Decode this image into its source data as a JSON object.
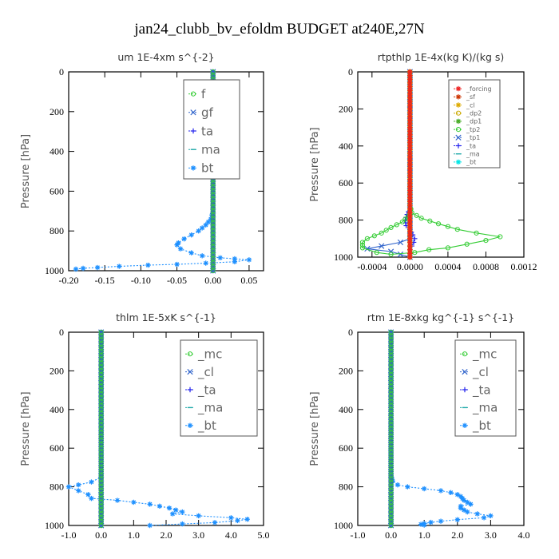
{
  "suptitle": "jan24_clubb_bv_efoldm  BUDGET at240E,27N",
  "chart_data": [
    {
      "type": "line",
      "title": "um   1E-4xm s^{-2}",
      "ylabel": "Pressure [hPa]",
      "xlim": [
        -0.2,
        0.07
      ],
      "ylim": [
        1000,
        0
      ],
      "xticks": [
        -0.2,
        -0.15,
        -0.1,
        -0.05,
        0.0,
        0.05
      ],
      "xtick_labels": [
        "-0.20",
        "-0.15",
        "-0.10",
        "-0.05",
        "0.00",
        "0.05"
      ],
      "yticks": [
        0,
        200,
        400,
        600,
        800,
        1000
      ],
      "ytick_labels": [
        "0",
        "200",
        "400",
        "600",
        "800",
        "1000"
      ],
      "legend_placement": "top-right",
      "legend_font": 15,
      "series": [
        {
          "name": "f",
          "color": "#33cc33",
          "marker": "o",
          "values": [
            [
              0.0,
              0
            ],
            [
              0.0,
              200
            ],
            [
              0.0,
              400
            ],
            [
              0.0,
              600
            ],
            [
              0.0,
              800
            ],
            [
              0.0,
              1000
            ]
          ]
        },
        {
          "name": "gf",
          "color": "#3366cc",
          "marker": "x",
          "values": [
            [
              0.0,
              0
            ],
            [
              0.0,
              1000
            ]
          ]
        },
        {
          "name": "ta",
          "color": "#2222ee",
          "marker": "+",
          "values": [
            [
              0.0,
              0
            ],
            [
              0.0,
              1000
            ]
          ]
        },
        {
          "name": "ma",
          "color": "#22aaaa",
          "marker": "-",
          "values": [
            [
              0.0,
              0
            ],
            [
              0.0,
              1000
            ]
          ]
        },
        {
          "name": "bt",
          "color": "#1e90ff",
          "marker": "*",
          "values": [
            [
              0.0,
              0
            ],
            [
              0.0,
              700
            ],
            [
              -0.003,
              740
            ],
            [
              -0.01,
              770
            ],
            [
              -0.02,
              800
            ],
            [
              -0.03,
              820
            ],
            [
              -0.04,
              840
            ],
            [
              -0.048,
              860
            ],
            [
              -0.05,
              870
            ],
            [
              -0.045,
              890
            ],
            [
              -0.03,
              910
            ],
            [
              -0.015,
              925
            ],
            [
              0.01,
              935
            ],
            [
              0.03,
              940
            ],
            [
              0.05,
              945
            ],
            [
              0.03,
              955
            ],
            [
              -0.01,
              962
            ],
            [
              -0.05,
              968
            ],
            [
              -0.09,
              972
            ],
            [
              -0.13,
              978
            ],
            [
              -0.16,
              984
            ],
            [
              -0.18,
              988
            ],
            [
              -0.19,
              992
            ]
          ]
        }
      ]
    },
    {
      "type": "line",
      "title": "rtpthlp   1E-4x(kg K)/(kg s)",
      "ylabel": "Pressure [hPa]",
      "xlim": [
        -0.00055,
        0.0012
      ],
      "ylim": [
        1000,
        0
      ],
      "xticks": [
        -0.0004,
        0.0,
        0.0004,
        0.0008,
        0.0012
      ],
      "xtick_labels": [
        "-0.0004",
        "0.0000",
        "0.0004",
        "0.0008",
        "0.0012"
      ],
      "yticks": [
        0,
        200,
        400,
        600,
        800,
        1000
      ],
      "ytick_labels": [
        "0",
        "200",
        "400",
        "600",
        "800",
        "1000"
      ],
      "legend_placement": "top-right",
      "legend_font": 8,
      "series": [
        {
          "name": "_forcing",
          "color": "#ee2222",
          "marker": "*",
          "values": [
            [
              0.0,
              0
            ],
            [
              0.0,
              1000
            ]
          ]
        },
        {
          "name": "_sf",
          "color": "#cc3300",
          "marker": "*",
          "values": [
            [
              0.0,
              0
            ],
            [
              0.0,
              1000
            ]
          ]
        },
        {
          "name": "_cl",
          "color": "#ddaa00",
          "marker": "*",
          "values": [
            [
              0.0,
              0
            ],
            [
              0.0,
              1000
            ]
          ]
        },
        {
          "name": "_dp2",
          "color": "#ccaa00",
          "marker": "o",
          "values": [
            [
              0.0,
              0
            ],
            [
              0.0,
              1000
            ]
          ]
        },
        {
          "name": "_dp1",
          "color": "#44aa22",
          "marker": "*",
          "values": [
            [
              0.0,
              0
            ],
            [
              0.0,
              1000
            ]
          ]
        },
        {
          "name": "_tp2",
          "color": "#33cc33",
          "marker": "o",
          "values": [
            [
              0.0,
              0
            ],
            [
              0.0,
              720
            ],
            [
              2e-05,
              760
            ],
            [
              0.00012,
              790
            ],
            [
              0.0003,
              820
            ],
            [
              0.0005,
              850
            ],
            [
              0.0007,
              870
            ],
            [
              0.00095,
              890
            ],
            [
              0.0008,
              910
            ],
            [
              0.0006,
              930
            ],
            [
              0.0004,
              950
            ],
            [
              0.0002,
              960
            ],
            [
              5e-05,
              975
            ],
            [
              -0.0002,
              985
            ],
            [
              -0.00035,
              975
            ],
            [
              -0.0005,
              950
            ],
            [
              -0.0005,
              920
            ],
            [
              -0.00045,
              900
            ],
            [
              -0.0003,
              870
            ],
            [
              -0.0002,
              840
            ],
            [
              -8e-05,
              810
            ],
            [
              -2e-05,
              780
            ],
            [
              0.0,
              760
            ]
          ]
        },
        {
          "name": "_tp1",
          "color": "#3366cc",
          "marker": "x",
          "values": [
            [
              0.0,
              0
            ],
            [
              0.0,
              900
            ],
            [
              -0.0001,
              920
            ],
            [
              -0.0003,
              940
            ],
            [
              -0.00045,
              955
            ],
            [
              -0.0002,
              970
            ],
            [
              0.0,
              1000
            ]
          ]
        },
        {
          "name": "_ta",
          "color": "#2222ee",
          "marker": "+",
          "values": [
            [
              0.0,
              0
            ],
            [
              0.0,
              740
            ],
            [
              -3e-05,
              770
            ],
            [
              -5e-05,
              800
            ],
            [
              -4e-05,
              830
            ],
            [
              0.0,
              850
            ],
            [
              3e-05,
              880
            ],
            [
              5e-05,
              900
            ],
            [
              4e-05,
              920
            ],
            [
              2e-05,
              940
            ],
            [
              0.0,
              960
            ],
            [
              0.0,
              1000
            ]
          ]
        },
        {
          "name": "_ma",
          "color": "#22aaaa",
          "marker": "-",
          "values": [
            [
              0.0,
              0
            ],
            [
              0.0,
              1000
            ]
          ]
        },
        {
          "name": "_bt",
          "color": "#00e5e5",
          "marker": "*",
          "values": [
            [
              0.0,
              0
            ],
            [
              0.0,
              1000
            ]
          ]
        }
      ]
    },
    {
      "type": "line",
      "title": "thlm   1E-5xK s^{-1}",
      "ylabel": "Pressure [hPa]",
      "xlim": [
        -1.0,
        5.0
      ],
      "ylim": [
        1000,
        0
      ],
      "xticks": [
        -1,
        0,
        1,
        2,
        3,
        4,
        5
      ],
      "xtick_labels": [
        "-1.0",
        "0.0",
        "1.0",
        "2.0",
        "3.0",
        "4.0",
        "5.0"
      ],
      "yticks": [
        0,
        200,
        400,
        600,
        800,
        1000
      ],
      "ytick_labels": [
        "0",
        "200",
        "400",
        "600",
        "800",
        "1000"
      ],
      "legend_placement": "top-right",
      "legend_font": 15,
      "series": [
        {
          "name": "_mc",
          "color": "#33cc33",
          "marker": "o",
          "values": [
            [
              0.0,
              0
            ],
            [
              0.0,
              200
            ],
            [
              0.0,
              400
            ],
            [
              0.0,
              600
            ],
            [
              0.0,
              800
            ],
            [
              0.0,
              1000
            ]
          ]
        },
        {
          "name": "_cl",
          "color": "#3366cc",
          "marker": "x",
          "values": [
            [
              0.0,
              0
            ],
            [
              0.0,
              1000
            ]
          ]
        },
        {
          "name": "_ta",
          "color": "#2222ee",
          "marker": "+",
          "values": [
            [
              0.0,
              0
            ],
            [
              0.0,
              1000
            ]
          ]
        },
        {
          "name": "_ma",
          "color": "#22aaaa",
          "marker": "-",
          "values": [
            [
              0.0,
              0
            ],
            [
              0.0,
              1000
            ]
          ]
        },
        {
          "name": "_bt",
          "color": "#1e90ff",
          "marker": "*",
          "values": [
            [
              0.0,
              0
            ],
            [
              0.0,
              750
            ],
            [
              -0.3,
              775
            ],
            [
              -0.7,
              790
            ],
            [
              -1.0,
              800
            ],
            [
              -0.7,
              820
            ],
            [
              -0.4,
              840
            ],
            [
              -0.3,
              860
            ],
            [
              0.5,
              870
            ],
            [
              1.0,
              880
            ],
            [
              1.5,
              890
            ],
            [
              1.8,
              900
            ],
            [
              2.1,
              910
            ],
            [
              2.3,
              920
            ],
            [
              2.5,
              930
            ],
            [
              2.2,
              940
            ],
            [
              3.0,
              950
            ],
            [
              4.0,
              960
            ],
            [
              4.5,
              968
            ],
            [
              4.2,
              975
            ],
            [
              3.5,
              985
            ],
            [
              2.5,
              992
            ],
            [
              1.5,
              1000
            ]
          ]
        }
      ]
    },
    {
      "type": "line",
      "title": "rtm   1E-8xkg kg^{-1} s^{-1}",
      "ylabel": "Pressure [hPa]",
      "xlim": [
        -1.0,
        4.0
      ],
      "ylim": [
        1000,
        0
      ],
      "xticks": [
        -1,
        0,
        1,
        2,
        3,
        4
      ],
      "xtick_labels": [
        "-1.0",
        "0.0",
        "1.0",
        "2.0",
        "3.0",
        "4.0"
      ],
      "yticks": [
        0,
        200,
        400,
        600,
        800,
        1000
      ],
      "ytick_labels": [
        "0",
        "200",
        "400",
        "600",
        "800",
        "1000"
      ],
      "legend_placement": "top-right",
      "legend_font": 15,
      "series": [
        {
          "name": "_mc",
          "color": "#33cc33",
          "marker": "o",
          "values": [
            [
              0.0,
              0
            ],
            [
              0.0,
              200
            ],
            [
              0.0,
              400
            ],
            [
              0.0,
              600
            ],
            [
              0.0,
              800
            ],
            [
              0.0,
              1000
            ]
          ]
        },
        {
          "name": "_cl",
          "color": "#3366cc",
          "marker": "x",
          "values": [
            [
              0.0,
              0
            ],
            [
              0.0,
              1000
            ]
          ]
        },
        {
          "name": "_ta",
          "color": "#2222ee",
          "marker": "+",
          "values": [
            [
              0.0,
              0
            ],
            [
              0.0,
              1000
            ]
          ]
        },
        {
          "name": "_ma",
          "color": "#22aaaa",
          "marker": "-",
          "values": [
            [
              0.0,
              0
            ],
            [
              0.0,
              1000
            ]
          ]
        },
        {
          "name": "_bt",
          "color": "#1e90ff",
          "marker": "*",
          "values": [
            [
              0.0,
              0
            ],
            [
              0.0,
              740
            ],
            [
              0.05,
              770
            ],
            [
              0.2,
              790
            ],
            [
              0.5,
              800
            ],
            [
              1.0,
              810
            ],
            [
              1.5,
              820
            ],
            [
              1.8,
              830
            ],
            [
              2.0,
              840
            ],
            [
              2.1,
              850
            ],
            [
              2.15,
              860
            ],
            [
              2.2,
              870
            ],
            [
              2.3,
              880
            ],
            [
              2.4,
              890
            ],
            [
              2.1,
              900
            ],
            [
              2.1,
              910
            ],
            [
              2.2,
              920
            ],
            [
              2.3,
              930
            ],
            [
              2.6,
              940
            ],
            [
              3.0,
              950
            ],
            [
              2.8,
              960
            ],
            [
              2.0,
              970
            ],
            [
              1.5,
              978
            ],
            [
              1.2,
              984
            ],
            [
              1.0,
              990
            ],
            [
              0.9,
              994
            ],
            [
              1.0,
              998
            ]
          ]
        }
      ]
    }
  ]
}
